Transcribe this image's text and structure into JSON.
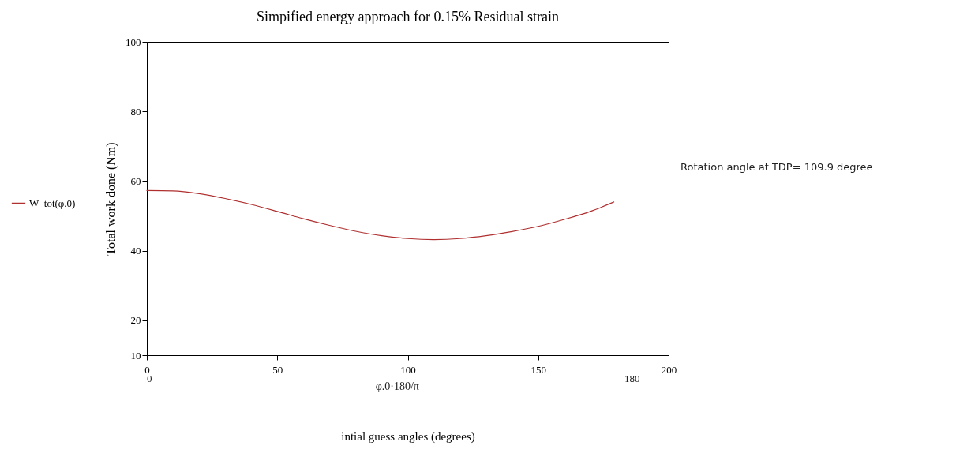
{
  "chart_data": {
    "type": "line",
    "title": "Simpified energy approach for 0.15% Residual strain",
    "xlabel": "intial guess angles (degrees)",
    "ylabel": "Total work done (Nm)",
    "annotations": [
      "0",
      "φ.0·180/π",
      "180",
      "Rotation angle at TDP= 109.9 degree"
    ],
    "x": [
      0,
      10,
      20,
      30,
      40,
      50,
      60,
      70,
      80,
      90,
      100,
      110,
      120,
      130,
      140,
      150,
      160,
      170,
      179
    ],
    "series": [
      {
        "name": "W_tot(φ.0)",
        "color": "#b03030",
        "values": [
          57.3,
          57.2,
          56.4,
          55.0,
          53.3,
          51.3,
          49.2,
          47.3,
          45.6,
          44.3,
          43.5,
          43.2,
          43.5,
          44.3,
          45.5,
          47.0,
          49.0,
          51.3,
          54.0
        ]
      }
    ],
    "xlim": [
      0,
      200
    ],
    "xticks": [
      0,
      50,
      100,
      150,
      200
    ],
    "ylim": [
      10,
      100
    ],
    "yticks": [
      {
        "value": 10,
        "label": "10"
      },
      20,
      40,
      60,
      80,
      100
    ],
    "grid": false,
    "legend": "left"
  }
}
